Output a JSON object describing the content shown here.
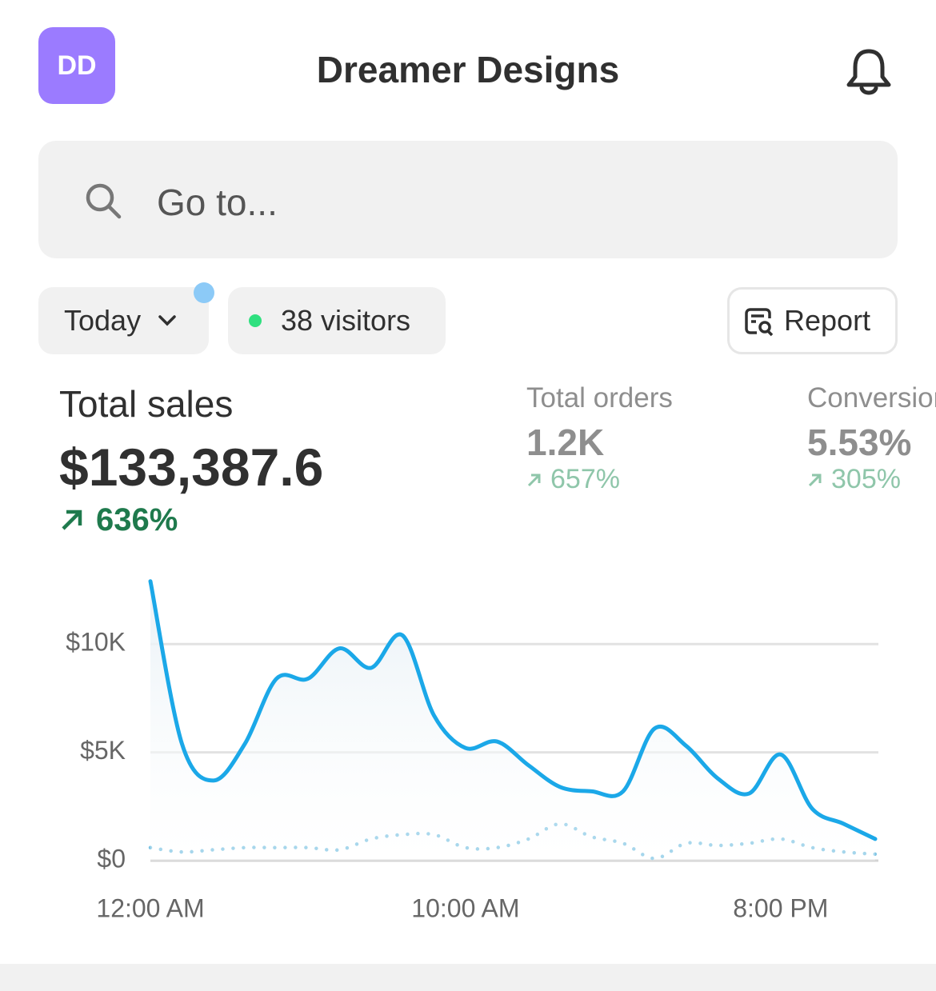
{
  "header": {
    "avatar": "DD",
    "title": "Dreamer Designs"
  },
  "search": {
    "placeholder": "Go to..."
  },
  "filters": {
    "date": "Today",
    "visitors": "38 visitors",
    "report": "Report"
  },
  "metrics": [
    {
      "label": "Total sales",
      "value": "$133,387.6",
      "change": "636%"
    },
    {
      "label": "Total orders",
      "value": "1.2K",
      "change": "657%"
    },
    {
      "label": "Conversion rate",
      "value": "5.53%",
      "change": "305%"
    }
  ],
  "chart_data": {
    "type": "line",
    "categories": [
      "12:00 AM",
      null,
      null,
      null,
      null,
      null,
      null,
      null,
      null,
      null,
      "10:00 AM",
      null,
      null,
      null,
      null,
      null,
      null,
      null,
      null,
      null,
      "8:00 PM",
      null,
      null,
      null
    ],
    "series": [
      {
        "color": "#1ba8e8",
        "line_style": "solid",
        "fill": true,
        "values": [
          12900,
          5400,
          3700,
          5400,
          8400,
          8400,
          9800,
          8900,
          10400,
          6700,
          5200,
          5500,
          4400,
          3400,
          3200,
          3200,
          6100,
          5300,
          3800,
          3100,
          4900,
          2400,
          1700,
          1000
        ]
      },
      {
        "color": "#7cc3e3",
        "line_style": "dotted",
        "fill": false,
        "values": [
          600,
          400,
          500,
          600,
          600,
          600,
          500,
          1000,
          1200,
          1200,
          600,
          600,
          1000,
          1700,
          1100,
          800,
          100,
          800,
          700,
          800,
          1000,
          600,
          400,
          300
        ]
      }
    ],
    "ylim": [
      0,
      13000
    ],
    "yticks": [
      {
        "value": 0,
        "label": "$0"
      },
      {
        "value": 5000,
        "label": "$5K"
      },
      {
        "value": 10000,
        "label": "$10K"
      }
    ],
    "grid": true
  }
}
